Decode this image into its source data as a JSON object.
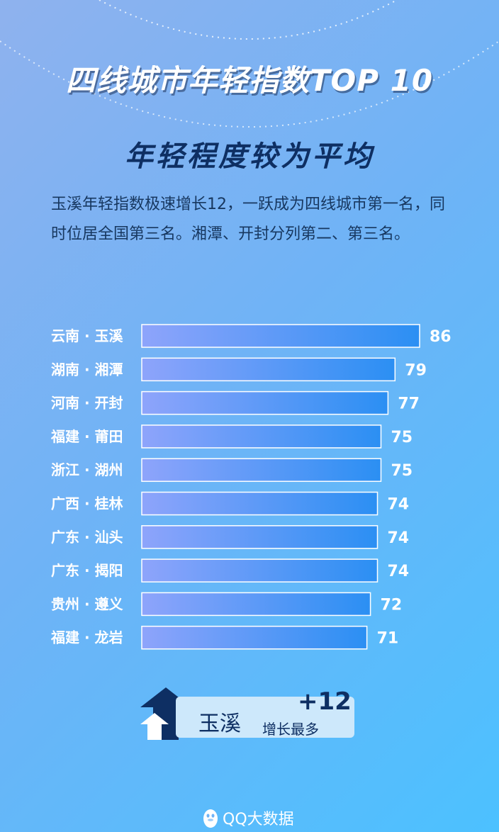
{
  "header": {
    "title": "四线城市年轻指数TOP 10",
    "subtitle": "年轻程度较为平均"
  },
  "description": "玉溪年轻指数极速增长12，一跃成为四线城市第一名，同时位居全国第三名。湘潭、开封分列第二、第三名。",
  "chart_data": {
    "type": "bar",
    "orientation": "horizontal",
    "categories": [
      "云南 · 玉溪",
      "湖南 · 湘潭",
      "河南 · 开封",
      "福建 · 莆田",
      "浙江 · 湖州",
      "广西 · 桂林",
      "广东 · 汕头",
      "广东 · 揭阳",
      "贵州 · 遵义",
      "福建 · 龙岩"
    ],
    "values": [
      86,
      79,
      77,
      75,
      75,
      74,
      74,
      74,
      72,
      71
    ],
    "data_labels": true,
    "title": "",
    "xlabel": "",
    "ylabel": "",
    "bar_color_start": "#8ea4fb",
    "bar_color_end": "#2b8ff3"
  },
  "highlight": {
    "city": "玉溪",
    "delta": "+12",
    "text": "增长最多",
    "arrow_icon": "up-arrow-icon"
  },
  "brand": {
    "logo_icon": "qq-penguin-icon",
    "name": "QQ大数据"
  },
  "colors": {
    "dark_navy": "#0e2f63",
    "badge_bg": "#cde8fb"
  }
}
